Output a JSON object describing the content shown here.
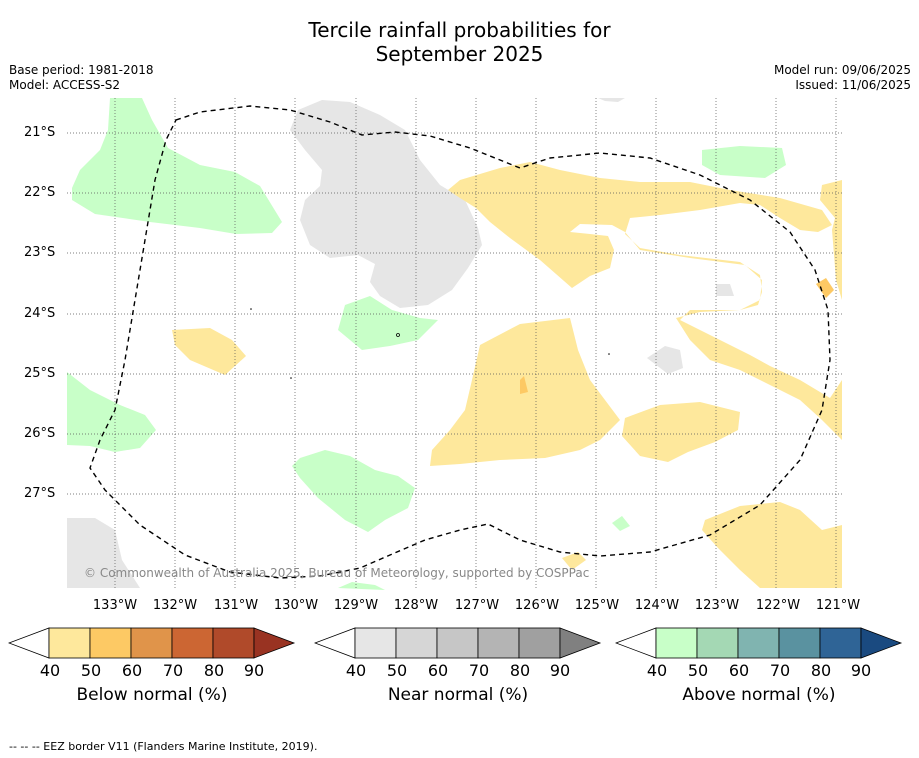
{
  "title_line1": "Tercile rainfall probabilities for",
  "title_line2": "September 2025",
  "base_period": "Base period: 1981-2018",
  "model": "Model: ACCESS-S2",
  "model_run": "Model run: 09/06/2025",
  "issued": "Issued: 11/06/2025",
  "lat_labels": [
    "21°S",
    "22°S",
    "23°S",
    "24°S",
    "25°S",
    "26°S",
    "27°S"
  ],
  "lon_labels": [
    "133°W",
    "132°W",
    "131°W",
    "130°W",
    "129°W",
    "128°W",
    "127°W",
    "126°W",
    "125°W",
    "124°W",
    "123°W",
    "122°W",
    "121°W"
  ],
  "copyright": "© Commonwealth of Australia 2025, Bureau of Meteorology, supported by COSPPac",
  "legends": [
    {
      "caption": "Below normal (%)",
      "ticks": [
        "40",
        "50",
        "60",
        "70",
        "80",
        "90"
      ],
      "colors": [
        "#fee89c",
        "#fdc964",
        "#e0944a",
        "#cc6633",
        "#b04a2a",
        "#993322"
      ]
    },
    {
      "caption": "Near normal (%)",
      "ticks": [
        "40",
        "50",
        "60",
        "70",
        "80",
        "90"
      ],
      "colors": [
        "#e6e6e6",
        "#d6d6d6",
        "#c6c6c6",
        "#b4b4b4",
        "#a0a0a0",
        "#808080"
      ]
    },
    {
      "caption": "Above normal (%)",
      "ticks": [
        "40",
        "50",
        "60",
        "70",
        "80",
        "90"
      ],
      "colors": [
        "#c8ffc8",
        "#a4d8b4",
        "#80b4b0",
        "#5a92a0",
        "#2f6496",
        "#1a4a80"
      ]
    }
  ],
  "footnote": "--  --  -- EEZ border V11 (Flanders Marine Institute, 2019)."
}
